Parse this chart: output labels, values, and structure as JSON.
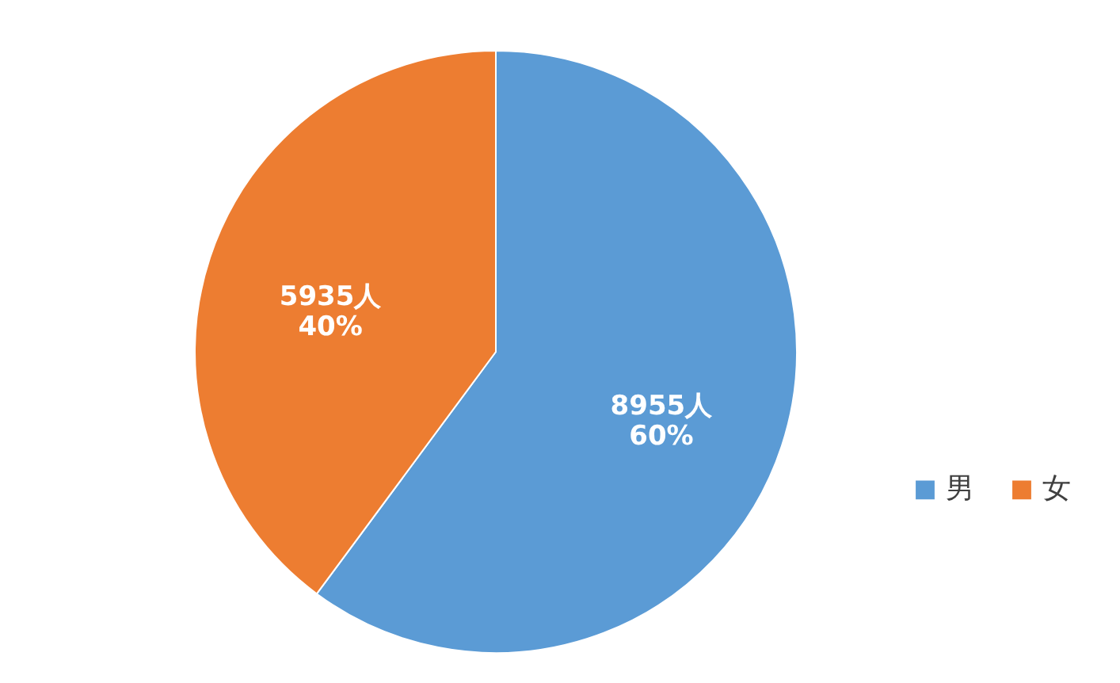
{
  "chart_data": {
    "type": "pie",
    "categories": [
      "男",
      "女"
    ],
    "values": [
      8955,
      5935
    ],
    "colors": [
      "#5b9bd5",
      "#ed7d31"
    ],
    "value_labels": [
      "8955人\n60%",
      "5935人\n40%"
    ],
    "legend": "right"
  }
}
